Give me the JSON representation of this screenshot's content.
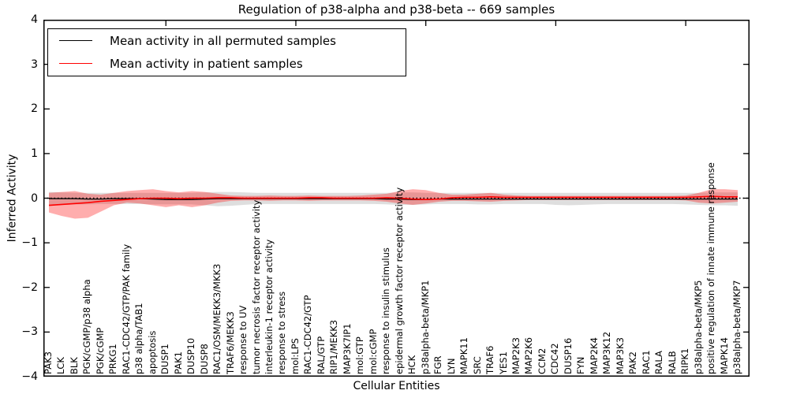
{
  "figure": {
    "kind": "matplotlib-style line plot with confidence bands"
  },
  "chart_data": {
    "type": "line",
    "title": "Regulation of p38-alpha and p38-beta -- 669 samples",
    "xlabel": "Cellular Entities",
    "ylabel": "Inferred Activity",
    "ylim": [
      -4,
      4
    ],
    "yticks": [
      "4",
      "3",
      "2",
      "1",
      "0",
      "−1",
      "−2",
      "−3",
      "−4"
    ],
    "ytick_values": [
      4,
      3,
      2,
      1,
      0,
      -1,
      -2,
      -3,
      -4
    ],
    "grid": false,
    "legend_position": "upper left",
    "zero_reference_line": 0,
    "categories": [
      "PAK3",
      "LCK",
      "BLK",
      "PGK/cGMP/p38 alpha",
      "PGK/cGMP",
      "PRKG1",
      "RAC1-CDC42/GTP/PAK family",
      "p38 alpha/TAB1",
      "apoptosis",
      "DUSP1",
      "PAK1",
      "DUSP10",
      "DUSP8",
      "RAC1/OSM/MEKK3/MKK3",
      "TRAF6/MEKK3",
      "response to UV",
      "tumor necrosis factor receptor activity",
      "interleukin-1 receptor activity",
      "response to stress",
      "mol:LPS",
      "RAC1-CDC42/GTP",
      "RAL/GTP",
      "RIP1/MEKK3",
      "MAP3K7IP1",
      "mol:GTP",
      "mol:cGMP",
      "response to insulin stimulus",
      "epidermal growth factor receptor activity",
      "HCK",
      "p38alpha-beta/MKP1",
      "FGR",
      "LYN",
      "MAPK11",
      "SRC",
      "TRAF6",
      "YES1",
      "MAP2K3",
      "MAP2K6",
      "CCM2",
      "CDC42",
      "DUSP16",
      "FYN",
      "MAP2K4",
      "MAP3K12",
      "MAP3K3",
      "PAK2",
      "RAC1",
      "RALA",
      "RALB",
      "RIPK1",
      "p38alpha-beta/MKP5",
      "positive regulation of innate immune response",
      "MAPK14",
      "p38alpha-beta/MKP7"
    ],
    "series": [
      {
        "name": "Mean activity in all permuted samples",
        "color": "#000000",
        "values": [
          -0.01,
          -0.01,
          -0.01,
          -0.02,
          -0.02,
          -0.01,
          -0.01,
          -0.01,
          -0.02,
          -0.03,
          -0.03,
          -0.03,
          -0.02,
          -0.01,
          -0.01,
          -0.01,
          -0.01,
          -0.01,
          -0.01,
          -0.01,
          -0.01,
          -0.01,
          -0.01,
          -0.01,
          -0.01,
          -0.01,
          -0.02,
          -0.02,
          -0.03,
          -0.03,
          -0.02,
          -0.02,
          -0.02,
          -0.02,
          -0.02,
          -0.02,
          -0.02,
          -0.02,
          -0.02,
          -0.02,
          -0.02,
          -0.02,
          -0.02,
          -0.02,
          -0.02,
          -0.02,
          -0.02,
          -0.02,
          -0.02,
          -0.02,
          -0.02,
          -0.02,
          -0.02,
          -0.02
        ]
      },
      {
        "name": "Mean activity in patient samples",
        "color": "#ff0000",
        "values": [
          -0.16,
          -0.14,
          -0.12,
          -0.1,
          -0.07,
          -0.05,
          -0.03,
          -0.01,
          0.0,
          0.0,
          -0.01,
          0.0,
          0.0,
          0.01,
          0.01,
          0.0,
          0.0,
          0.0,
          0.0,
          0.0,
          0.01,
          0.01,
          0.0,
          0.0,
          0.0,
          0.0,
          0.01,
          0.0,
          -0.02,
          -0.03,
          -0.02,
          0.01,
          0.02,
          0.02,
          0.03,
          0.02,
          0.02,
          0.02,
          0.02,
          0.02,
          0.02,
          0.02,
          0.02,
          0.02,
          0.02,
          0.02,
          0.02,
          0.02,
          0.02,
          0.02,
          0.03,
          0.04,
          0.03,
          0.03
        ]
      }
    ],
    "bands": [
      {
        "name": "permuted samples activity range",
        "color": "#000000",
        "opacity": 0.13,
        "upper": [
          0.14,
          0.13,
          0.12,
          0.12,
          0.12,
          0.12,
          0.12,
          0.12,
          0.12,
          0.12,
          0.12,
          0.12,
          0.13,
          0.14,
          0.14,
          0.13,
          0.12,
          0.12,
          0.12,
          0.12,
          0.12,
          0.12,
          0.12,
          0.12,
          0.12,
          0.12,
          0.12,
          0.13,
          0.13,
          0.12,
          0.12,
          0.12,
          0.12,
          0.12,
          0.12,
          0.12,
          0.12,
          0.12,
          0.12,
          0.12,
          0.12,
          0.12,
          0.12,
          0.12,
          0.12,
          0.12,
          0.12,
          0.12,
          0.12,
          0.12,
          0.12,
          0.13,
          0.13,
          0.13
        ],
        "lower": [
          -0.16,
          -0.15,
          -0.14,
          -0.14,
          -0.13,
          -0.13,
          -0.13,
          -0.13,
          -0.14,
          -0.14,
          -0.14,
          -0.14,
          -0.16,
          -0.18,
          -0.17,
          -0.15,
          -0.13,
          -0.13,
          -0.13,
          -0.13,
          -0.13,
          -0.13,
          -0.13,
          -0.13,
          -0.13,
          -0.13,
          -0.14,
          -0.15,
          -0.15,
          -0.14,
          -0.13,
          -0.13,
          -0.13,
          -0.14,
          -0.14,
          -0.13,
          -0.13,
          -0.13,
          -0.13,
          -0.15,
          -0.16,
          -0.15,
          -0.14,
          -0.13,
          -0.13,
          -0.13,
          -0.13,
          -0.13,
          -0.13,
          -0.14,
          -0.15,
          -0.16,
          -0.16,
          -0.17
        ]
      },
      {
        "name": "patient samples activity range",
        "color": "#ff0000",
        "opacity": 0.32,
        "upper": [
          0.12,
          0.14,
          0.16,
          0.1,
          0.08,
          0.12,
          0.16,
          0.18,
          0.2,
          0.16,
          0.13,
          0.16,
          0.14,
          0.1,
          0.06,
          0.05,
          0.05,
          0.06,
          0.05,
          0.05,
          0.06,
          0.05,
          0.05,
          0.05,
          0.06,
          0.08,
          0.1,
          0.16,
          0.2,
          0.18,
          0.12,
          0.08,
          0.08,
          0.1,
          0.12,
          0.08,
          0.06,
          0.05,
          0.05,
          0.05,
          0.05,
          0.05,
          0.05,
          0.05,
          0.05,
          0.05,
          0.05,
          0.05,
          0.05,
          0.06,
          0.12,
          0.2,
          0.2,
          0.18
        ],
        "lower": [
          -0.32,
          -0.4,
          -0.46,
          -0.44,
          -0.3,
          -0.16,
          -0.1,
          -0.12,
          -0.16,
          -0.2,
          -0.16,
          -0.2,
          -0.16,
          -0.1,
          -0.06,
          -0.05,
          -0.05,
          -0.06,
          -0.05,
          -0.05,
          -0.06,
          -0.05,
          -0.05,
          -0.05,
          -0.05,
          -0.06,
          -0.08,
          -0.12,
          -0.15,
          -0.12,
          -0.08,
          -0.06,
          -0.06,
          -0.07,
          -0.08,
          -0.06,
          -0.05,
          -0.04,
          -0.04,
          -0.04,
          -0.04,
          -0.04,
          -0.04,
          -0.04,
          -0.04,
          -0.04,
          -0.04,
          -0.04,
          -0.04,
          -0.05,
          -0.1,
          -0.12,
          -0.1,
          -0.08
        ]
      }
    ]
  }
}
